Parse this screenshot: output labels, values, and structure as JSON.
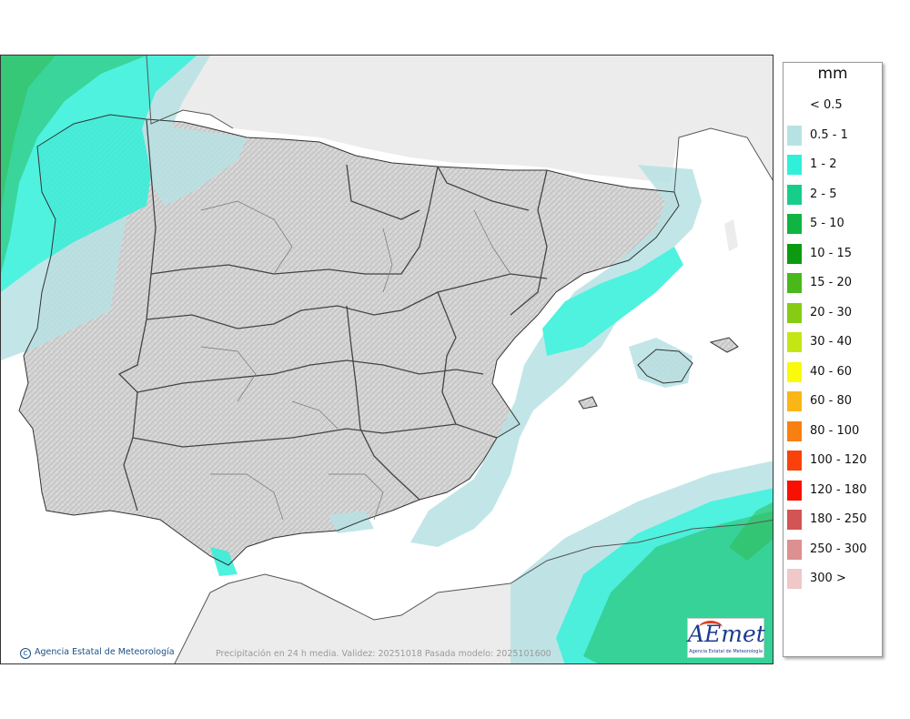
{
  "legend": {
    "title": "mm",
    "items": [
      {
        "label": "< 0.5",
        "color": "#ffffff"
      },
      {
        "label": "0.5 - 1",
        "color": "#b7e2e4"
      },
      {
        "label": "1 - 2",
        "color": "#30f0da"
      },
      {
        "label": "2 - 5",
        "color": "#16ce8a"
      },
      {
        "label": "5 - 10",
        "color": "#10b442"
      },
      {
        "label": "10 - 15",
        "color": "#0c9a10"
      },
      {
        "label": "15 - 20",
        "color": "#4ab81a"
      },
      {
        "label": "20 - 30",
        "color": "#86cc14"
      },
      {
        "label": "30 - 40",
        "color": "#c4e614"
      },
      {
        "label": "40 - 60",
        "color": "#fafa0a"
      },
      {
        "label": "60 - 80",
        "color": "#fab616"
      },
      {
        "label": "80 - 100",
        "color": "#f88010"
      },
      {
        "label": "100 - 120",
        "color": "#f8420a"
      },
      {
        "label": "120 - 180",
        "color": "#f81000"
      },
      {
        "label": "180 - 250",
        "color": "#d25454"
      },
      {
        "label": "250 - 300",
        "color": "#dc9090"
      },
      {
        "label": "300 >",
        "color": "#f0c8c8"
      }
    ]
  },
  "footer": {
    "credit": "Agencia Estatal de Meteorología",
    "caption": "Precipitación en 24 h media. Validez: 20251018 Pasada modelo: 2025101600"
  },
  "logo": {
    "word": "AEmet",
    "sub": "Agencia Estatal de Meteorología"
  },
  "colors": {
    "sea": "#ffffff",
    "land": "#d6d6d6",
    "foreign_land": "#ececec",
    "borders": "#333333"
  }
}
